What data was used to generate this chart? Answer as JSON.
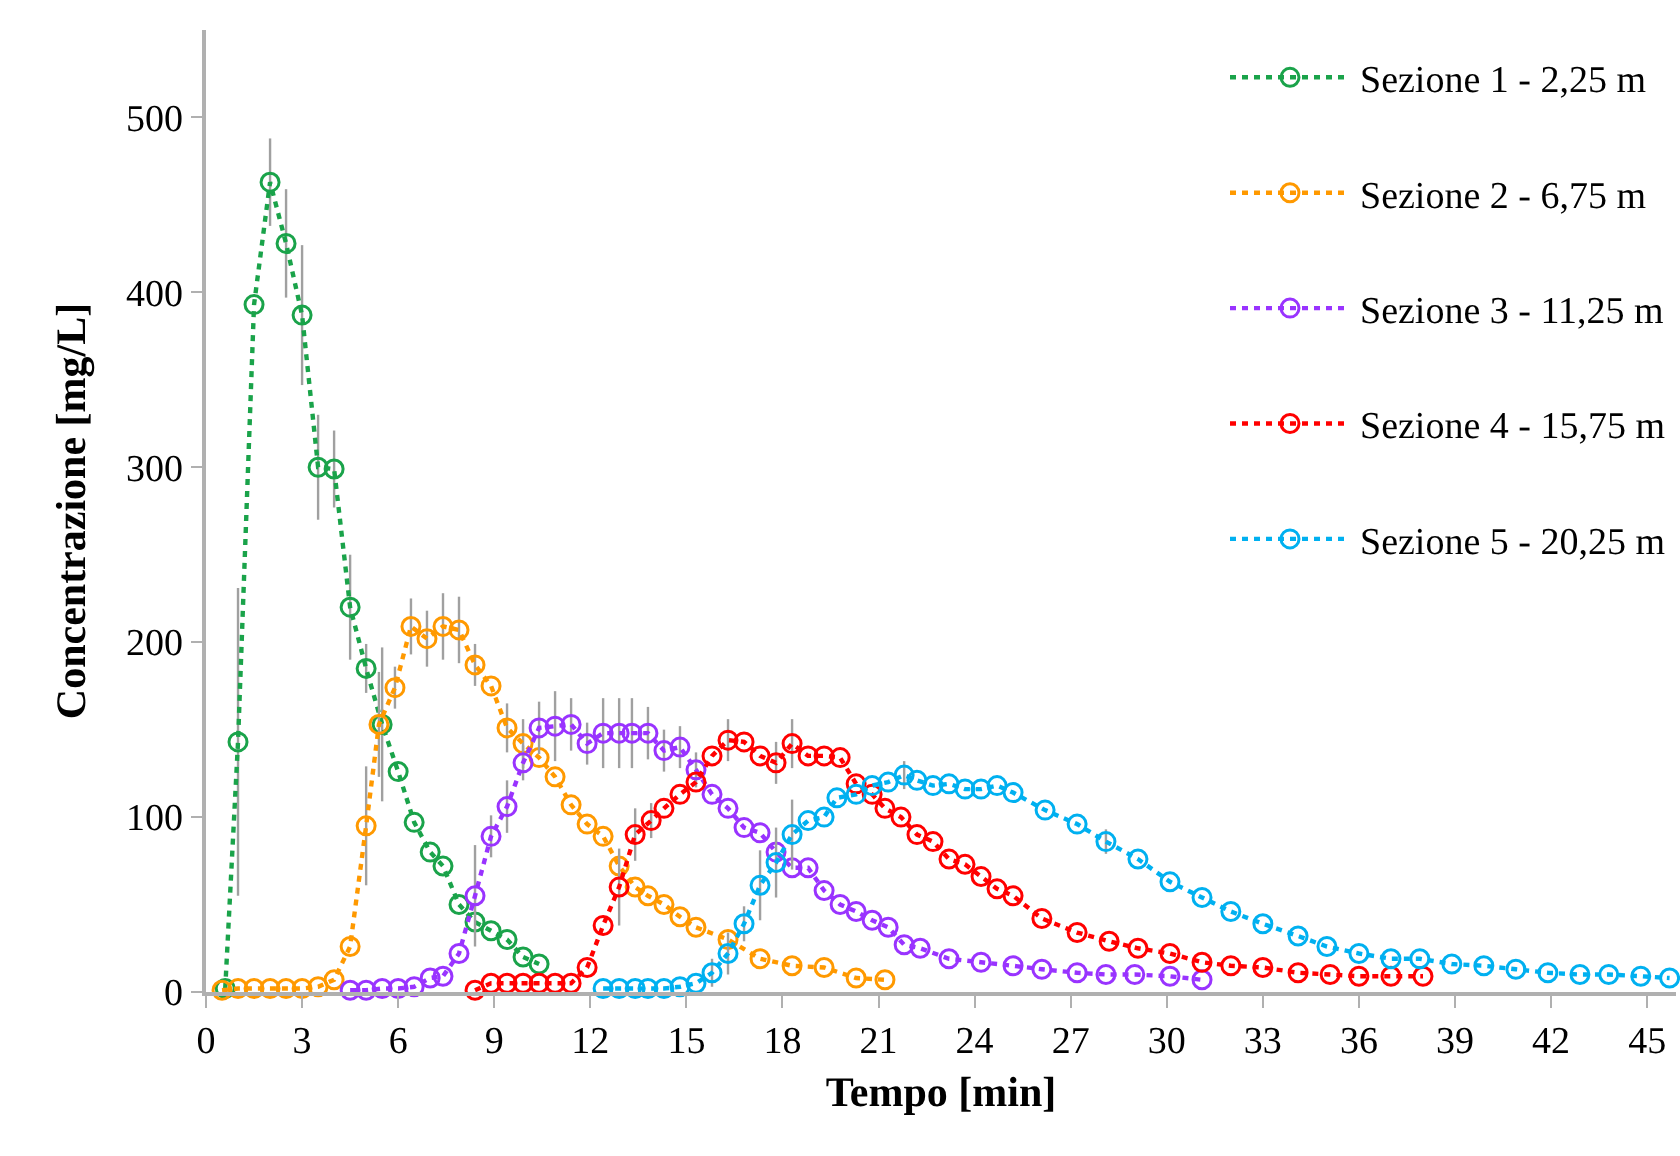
{
  "chart_data": {
    "type": "line",
    "xlabel": "Tempo [min]",
    "ylabel": "Concentrazione [mg/L]",
    "xlim": [
      0,
      45.9
    ],
    "xticks": [
      0,
      3,
      6,
      9,
      12,
      15,
      18,
      21,
      24,
      27,
      30,
      33,
      36,
      39,
      42,
      45
    ],
    "ylim": [
      0,
      550
    ],
    "yticks": [
      0,
      100,
      200,
      300,
      400,
      500
    ],
    "legend": "top right",
    "marker": "circle",
    "line_style": "dotted",
    "series": [
      {
        "name": "Sezione 1 - 2,25 m",
        "color": "#1aa34a",
        "x": [
          0.6,
          1.0,
          1.5,
          2.0,
          2.5,
          3.0,
          3.5,
          4.0,
          4.5,
          5.0,
          5.5,
          6.0,
          6.5,
          7.0,
          7.4,
          7.9,
          8.4,
          8.9,
          9.4,
          9.9,
          10.4
        ],
        "values": [
          2,
          143,
          393,
          463,
          428,
          387,
          300,
          299,
          220,
          185,
          153,
          126,
          97,
          80,
          72,
          50,
          40,
          35,
          30,
          20,
          16
        ],
        "errors": [
          null,
          88,
          null,
          25,
          31,
          40,
          30,
          22,
          30,
          14,
          44,
          null,
          null,
          null,
          null,
          null,
          null,
          null,
          null,
          null,
          null
        ]
      },
      {
        "name": "Sezione 2 - 6,75 m",
        "color": "#ff9900",
        "x": [
          0.5,
          1.0,
          1.5,
          2.0,
          2.5,
          3.0,
          3.5,
          4.0,
          4.5,
          5.0,
          5.4,
          5.9,
          6.4,
          6.9,
          7.4,
          7.9,
          8.4,
          8.9,
          9.4,
          9.9,
          10.4,
          10.9,
          11.4,
          11.9,
          12.4,
          12.9,
          13.4,
          13.8,
          14.3,
          14.8,
          15.3,
          16.3,
          17.3,
          18.3,
          19.3,
          20.3,
          21.2
        ],
        "values": [
          1,
          2,
          2,
          2,
          2,
          2,
          3,
          7,
          26,
          95,
          153,
          174,
          209,
          202,
          209,
          207,
          187,
          175,
          151,
          142,
          134,
          123,
          107,
          96,
          89,
          72,
          60,
          55,
          50,
          43,
          37,
          30,
          19,
          15,
          14,
          8,
          7
        ],
        "errors": [
          null,
          null,
          null,
          null,
          null,
          null,
          null,
          null,
          null,
          34,
          30,
          12,
          16,
          16,
          19,
          19,
          12,
          null,
          14,
          14,
          null,
          null,
          null,
          null,
          null,
          null,
          null,
          null,
          null,
          null,
          null,
          null,
          null,
          null,
          null,
          null,
          null
        ]
      },
      {
        "name": "Sezione 3 - 11,25 m",
        "color": "#9933ff",
        "x": [
          4.5,
          5.0,
          5.5,
          6.0,
          6.5,
          7.0,
          7.4,
          7.9,
          8.4,
          8.9,
          9.4,
          9.9,
          10.4,
          10.9,
          11.4,
          11.9,
          12.4,
          12.9,
          13.3,
          13.8,
          14.3,
          14.8,
          15.3,
          15.8,
          16.3,
          16.8,
          17.3,
          17.8,
          18.3,
          18.8,
          19.3,
          19.8,
          20.3,
          20.8,
          21.3,
          21.8,
          22.3,
          23.2,
          24.2,
          25.2,
          26.1,
          27.2,
          28.1,
          29.0,
          30.1,
          31.1
        ],
        "values": [
          1,
          1,
          2,
          2,
          3,
          8,
          9,
          22,
          55,
          89,
          106,
          131,
          151,
          152,
          153,
          142,
          148,
          148,
          148,
          148,
          138,
          140,
          127,
          113,
          105,
          94,
          91,
          80,
          71,
          71,
          58,
          50,
          46,
          41,
          37,
          27,
          25,
          19,
          17,
          15,
          13,
          11,
          10,
          10,
          9,
          7
        ],
        "errors": [
          null,
          null,
          null,
          null,
          null,
          null,
          null,
          null,
          29,
          12,
          15,
          10,
          15,
          20,
          15,
          12,
          20,
          20,
          20,
          15,
          12,
          12,
          10,
          null,
          null,
          null,
          null,
          null,
          null,
          null,
          null,
          null,
          null,
          null,
          null,
          null,
          null,
          null,
          null,
          null,
          null,
          null,
          null,
          null,
          null,
          null
        ]
      },
      {
        "name": "Sezione 4 - 15,75 m",
        "color": "#ff0000",
        "x": [
          8.4,
          8.9,
          9.4,
          9.9,
          10.4,
          10.9,
          11.4,
          11.9,
          12.4,
          12.9,
          13.4,
          13.9,
          14.3,
          14.8,
          15.3,
          15.8,
          16.3,
          16.8,
          17.3,
          17.8,
          18.3,
          18.8,
          19.3,
          19.8,
          20.3,
          20.8,
          21.2,
          21.7,
          22.2,
          22.7,
          23.2,
          23.7,
          24.2,
          24.7,
          25.2,
          26.1,
          27.2,
          28.2,
          29.1,
          30.1,
          31.1,
          32.0,
          33.0,
          34.1,
          35.1,
          36.0,
          37.0,
          38.0
        ],
        "values": [
          1,
          5,
          5,
          5,
          5,
          5,
          5,
          14,
          38,
          60,
          90,
          98,
          105,
          113,
          120,
          135,
          144,
          143,
          135,
          131,
          142,
          135,
          135,
          134,
          119,
          113,
          105,
          100,
          90,
          86,
          76,
          73,
          66,
          59,
          55,
          42,
          34,
          29,
          25,
          22,
          17,
          15,
          14,
          11,
          10,
          9,
          9,
          9
        ],
        "errors": [
          null,
          null,
          null,
          null,
          null,
          null,
          null,
          null,
          null,
          22,
          15,
          10,
          null,
          null,
          null,
          null,
          12,
          null,
          null,
          12,
          14,
          null,
          null,
          null,
          null,
          null,
          null,
          null,
          null,
          null,
          null,
          null,
          null,
          null,
          null,
          null,
          null,
          null,
          null,
          null,
          null,
          null,
          null,
          null,
          null,
          null,
          null,
          null
        ]
      },
      {
        "name": "Sezione 5 - 20,25 m",
        "color": "#00b0f0",
        "x": [
          12.4,
          12.9,
          13.4,
          13.8,
          14.3,
          14.8,
          15.3,
          15.8,
          16.3,
          16.8,
          17.3,
          17.8,
          18.3,
          18.8,
          19.3,
          19.7,
          20.3,
          20.8,
          21.3,
          21.8,
          22.2,
          22.7,
          23.2,
          23.7,
          24.2,
          24.7,
          25.2,
          26.2,
          27.2,
          28.1,
          29.1,
          30.1,
          31.1,
          32.0,
          33.0,
          34.1,
          35.0,
          36.0,
          37.0,
          37.9,
          38.9,
          39.9,
          40.9,
          41.9,
          42.9,
          43.8,
          44.8,
          45.7
        ],
        "values": [
          2,
          2,
          2,
          2,
          2,
          3,
          5,
          11,
          22,
          39,
          61,
          74,
          90,
          98,
          100,
          111,
          113,
          118,
          120,
          124,
          121,
          118,
          119,
          116,
          116,
          118,
          114,
          104,
          96,
          86,
          76,
          63,
          54,
          46,
          39,
          32,
          26,
          22,
          19,
          19,
          16,
          15,
          13,
          11,
          10,
          10,
          9,
          8
        ],
        "errors": [
          null,
          null,
          null,
          null,
          null,
          null,
          null,
          8,
          12,
          10,
          20,
          20,
          20,
          null,
          null,
          null,
          null,
          null,
          null,
          8,
          null,
          null,
          null,
          null,
          null,
          null,
          null,
          null,
          null,
          7,
          null,
          null,
          null,
          null,
          null,
          null,
          null,
          null,
          null,
          null,
          null,
          null,
          null,
          null,
          null,
          null,
          null,
          null
        ]
      }
    ]
  }
}
